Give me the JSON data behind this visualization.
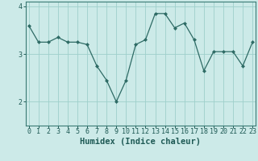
{
  "x": [
    0,
    1,
    2,
    3,
    4,
    5,
    6,
    7,
    8,
    9,
    10,
    11,
    12,
    13,
    14,
    15,
    16,
    17,
    18,
    19,
    20,
    21,
    22,
    23
  ],
  "y": [
    3.6,
    3.25,
    3.25,
    3.35,
    3.25,
    3.25,
    3.2,
    2.75,
    2.45,
    2.0,
    2.45,
    3.2,
    3.3,
    3.85,
    3.85,
    3.55,
    3.65,
    3.3,
    2.65,
    3.05,
    3.05,
    3.05,
    2.75,
    3.25
  ],
  "line_color": "#2e6b65",
  "marker": "D",
  "marker_size": 2.0,
  "bg_color": "#cceae8",
  "grid_color": "#9ecfcb",
  "xlabel": "Humidex (Indice chaleur)",
  "xlabel_fontsize": 7.5,
  "tick_fontsize": 6.0,
  "ylim": [
    1.5,
    4.1
  ],
  "yticks": [
    2,
    3,
    4
  ],
  "xticks": [
    0,
    1,
    2,
    3,
    4,
    5,
    6,
    7,
    8,
    9,
    10,
    11,
    12,
    13,
    14,
    15,
    16,
    17,
    18,
    19,
    20,
    21,
    22,
    23
  ],
  "tick_color": "#1e5a55",
  "spine_color": "#3a7a74",
  "xlim": [
    -0.3,
    23.3
  ]
}
